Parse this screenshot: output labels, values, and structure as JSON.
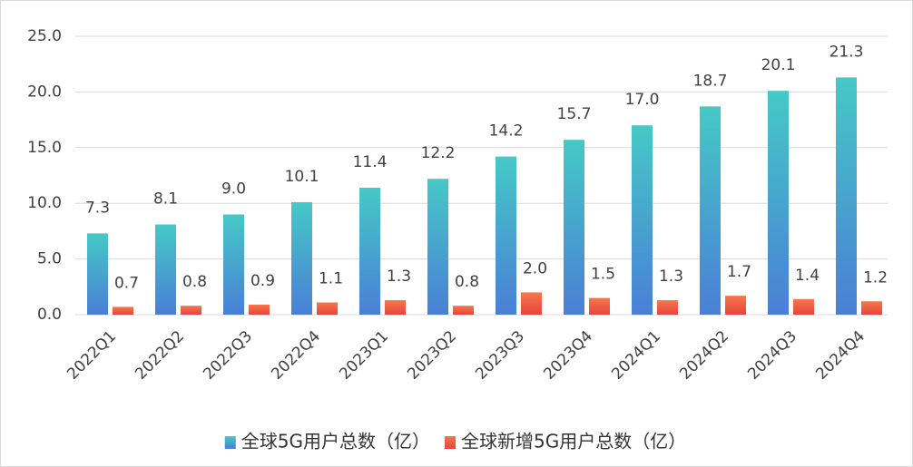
{
  "chart_data": {
    "type": "bar",
    "categories": [
      "2022Q1",
      "2022Q2",
      "2022Q3",
      "2022Q4",
      "2023Q1",
      "2023Q2",
      "2023Q3",
      "2023Q4",
      "2024Q1",
      "2024Q2",
      "2024Q3",
      "2024Q4"
    ],
    "series": [
      {
        "name": "全球5G用户总数（亿）",
        "color": "#45c9c6",
        "color_bottom": "#4a7fd6",
        "values": [
          7.3,
          8.1,
          9.0,
          10.1,
          11.4,
          12.2,
          14.2,
          15.7,
          17.0,
          18.7,
          20.1,
          21.3
        ],
        "value_labels": [
          "7.3",
          "8.1",
          "9.0",
          "10.1",
          "11.4",
          "12.2",
          "14.2",
          "15.7",
          "17.0",
          "18.7",
          "20.1",
          "21.3"
        ]
      },
      {
        "name": "全球新增5G用户总数（亿）",
        "color": "#f5784a",
        "color_bottom": "#e8433f",
        "values": [
          0.7,
          0.8,
          0.9,
          1.1,
          1.3,
          0.8,
          2.0,
          1.5,
          1.3,
          1.7,
          1.4,
          1.2
        ],
        "value_labels": [
          "0.7",
          "0.8",
          "0.9",
          "1.1",
          "1.3",
          "0.8",
          "2.0",
          "1.5",
          "1.3",
          "1.7",
          "1.4",
          "1.2"
        ]
      }
    ],
    "ylim": [
      0,
      25
    ],
    "yticks": [
      {
        "value": 0,
        "label": "0.0"
      },
      {
        "value": 5,
        "label": "5.0"
      },
      {
        "value": 10,
        "label": "10.0"
      },
      {
        "value": 15,
        "label": "15.0"
      },
      {
        "value": 20,
        "label": "20.0"
      },
      {
        "value": 25,
        "label": "25.0"
      }
    ],
    "grid": true
  }
}
